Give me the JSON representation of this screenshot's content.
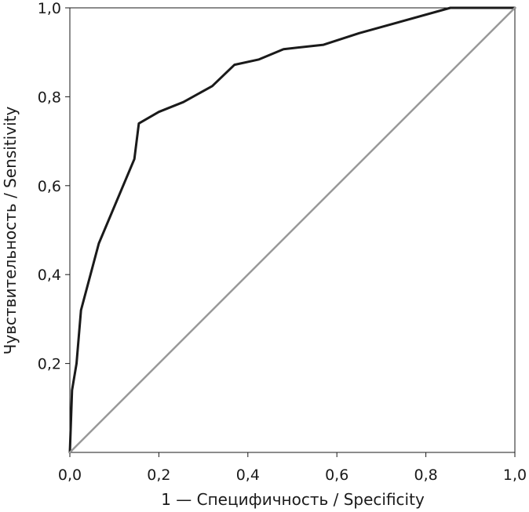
{
  "chart_data": {
    "type": "line",
    "xlabel": "1 — Специфичность / Specificity",
    "ylabel": "Чувствительность / Sensitivity",
    "xlim": [
      0,
      1
    ],
    "ylim": [
      0,
      1
    ],
    "x_ticks": [
      0,
      0.2,
      0.4,
      0.6,
      0.8,
      1.0
    ],
    "y_ticks": [
      0.2,
      0.4,
      0.6,
      0.8,
      1.0
    ],
    "x_tick_labels": [
      "0,0",
      "0,2",
      "0,4",
      "0,6",
      "0,8",
      "1,0"
    ],
    "y_tick_labels": [
      "0,2",
      "0,4",
      "0,6",
      "0,8",
      "1,0"
    ],
    "grid": false,
    "legend": "none",
    "series": [
      {
        "color": "#1a1a1a",
        "points": [
          [
            0.0,
            0.0
          ],
          [
            0.005,
            0.14
          ],
          [
            0.015,
            0.2
          ],
          [
            0.025,
            0.32
          ],
          [
            0.065,
            0.47
          ],
          [
            0.145,
            0.66
          ],
          [
            0.155,
            0.74
          ],
          [
            0.2,
            0.766
          ],
          [
            0.255,
            0.788
          ],
          [
            0.32,
            0.824
          ],
          [
            0.37,
            0.872
          ],
          [
            0.425,
            0.884
          ],
          [
            0.48,
            0.907
          ],
          [
            0.57,
            0.917
          ],
          [
            0.65,
            0.943
          ],
          [
            0.855,
            1.0
          ],
          [
            1.0,
            1.0
          ]
        ]
      },
      {
        "color": "#999999",
        "points": [
          [
            0,
            0
          ],
          [
            1,
            1
          ]
        ]
      }
    ]
  }
}
